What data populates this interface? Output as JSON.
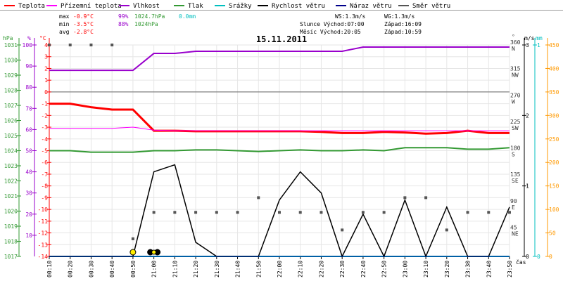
{
  "chart_data": {
    "type": "line",
    "title": "15.11.2011",
    "legend": [
      "Teplota",
      "Přízemní teplota",
      "Vlhkost",
      "Tlak",
      "Srážky",
      "Rychlost větru",
      "Náraz větru",
      "Směr větru"
    ],
    "stats": {
      "max": {
        "label": "max",
        "temp": "-0.9°C",
        "hum": "99%",
        "press": "1024.7hPa",
        "rain": "0.0mm"
      },
      "min": {
        "label": "min",
        "temp": "-3.5°C",
        "hum": "88%",
        "press": "1024hPa"
      },
      "avg": {
        "label": "avg",
        "temp": "-2.8°C"
      }
    },
    "info": {
      "ws": "WS:1.3m/s",
      "wg": "WG:1.3m/s",
      "slunce": "Slunce Východ:07:00",
      "slunce_zapad": "Západ:16:09",
      "mesic": "Měsíc  Východ:20:05",
      "mesic_zapad": "Západ:10:59"
    },
    "axis_units": {
      "hpa": "hPa",
      "pct": "%",
      "degc": "°C",
      "deg": "°",
      "ms": "m/s",
      "mm": "mm",
      "cas": "čas"
    },
    "axes": {
      "hpa_ticks": [
        1031,
        1030,
        1029,
        1028,
        1027,
        1026,
        1025,
        1024,
        1023,
        1022,
        1021,
        1020,
        1019,
        1018,
        1017
      ],
      "pct_ticks": [
        100,
        90,
        80,
        70,
        60,
        50,
        40,
        30,
        20,
        10
      ],
      "temp_ticks": [
        4,
        3,
        2,
        1,
        0,
        -1,
        -2,
        -3,
        -4,
        -5,
        -6,
        -7,
        -8,
        -9,
        -10,
        -11,
        -12,
        -13,
        -14
      ],
      "dir_ticks": [
        {
          "deg": "360",
          "name": "N",
          "v": 360
        },
        {
          "deg": "315",
          "name": "NW",
          "v": 315
        },
        {
          "deg": "270",
          "name": "W",
          "v": 270
        },
        {
          "deg": "225",
          "name": "SW",
          "v": 225
        },
        {
          "deg": "180",
          "name": "S",
          "v": 180
        },
        {
          "deg": "135",
          "name": "SE",
          "v": 135
        },
        {
          "deg": "90",
          "name": "E",
          "v": 90
        },
        {
          "deg": "45",
          "name": "NE",
          "v": 45
        }
      ],
      "ms_ticks": [
        {
          "label": "3",
          "v": 3
        },
        {
          "label": "2",
          "v": 2
        },
        {
          "label": "1",
          "v": 1
        },
        {
          "label": "0",
          "v": 0
        }
      ],
      "mm_ticks": [
        {
          "label": "1",
          "v": 1
        },
        {
          "label": "0",
          "v": 0
        }
      ],
      "rain_ticks": [
        450,
        400,
        350,
        300,
        250,
        200,
        150,
        100,
        50,
        0
      ]
    },
    "x": [
      "00:10",
      "00:20",
      "00:30",
      "00:40",
      "00:50",
      "21:00",
      "21:10",
      "21:20",
      "21:30",
      "21:40",
      "21:50",
      "22:00",
      "22:10",
      "22:20",
      "22:30",
      "22:40",
      "22:50",
      "23:00",
      "23:10",
      "23:20",
      "23:30",
      "23:40",
      "23:50"
    ],
    "x_labels": [
      "00:10",
      "00:20",
      "00:30",
      "00:40",
      "00:50",
      "21:00",
      "21:10",
      "21:20",
      "21:30",
      "21:40",
      "21:50",
      "22:00",
      "22:10",
      "22:20",
      "22:30",
      "22:40",
      "22:50",
      "23:00",
      "23:10",
      "23:20",
      "23:30",
      "23:40",
      "23:50"
    ],
    "series": [
      {
        "name": "Teplota",
        "color": "#ff0000",
        "axis": "temp",
        "values": [
          -1.0,
          -1.0,
          -1.3,
          -1.5,
          -1.5,
          -3.3,
          -3.3,
          -3.35,
          -3.35,
          -3.35,
          -3.35,
          -3.35,
          -3.35,
          -3.4,
          -3.5,
          -3.5,
          -3.4,
          -3.45,
          -3.55,
          -3.5,
          -3.3,
          -3.5,
          -3.5
        ]
      },
      {
        "name": "Přízemní teplota",
        "color": "#ff00ff",
        "axis": "temp",
        "values": [
          -3.1,
          -3.1,
          -3.1,
          -3.1,
          -3.0,
          -3.25,
          -3.3,
          -3.3,
          -3.3,
          -3.3,
          -3.3,
          -3.3,
          -3.3,
          -3.3,
          -3.3,
          -3.3,
          -3.3,
          -3.3,
          -3.3,
          -3.3,
          -3.3,
          -3.3,
          -3.3
        ]
      },
      {
        "name": "Vlhkost",
        "color": "#9900cc",
        "axis": "pct",
        "values": [
          88,
          88,
          88,
          88,
          88,
          96,
          96,
          97,
          97,
          97,
          97,
          97,
          97,
          97,
          97,
          99,
          99,
          99,
          99,
          99,
          99,
          99,
          99
        ]
      },
      {
        "name": "Tlak",
        "color": "#339933",
        "axis": "hpa",
        "values": [
          1024.0,
          1024.0,
          1023.9,
          1023.9,
          1023.9,
          1024.0,
          1024.0,
          1024.05,
          1024.05,
          1024.0,
          1023.95,
          1024.0,
          1024.05,
          1024.0,
          1024.0,
          1024.05,
          1024.0,
          1024.2,
          1024.2,
          1024.2,
          1024.1,
          1024.1,
          1024.2
        ]
      },
      {
        "name": "Srážky",
        "color": "#00bfbf",
        "axis": "rain",
        "values": [
          0,
          0,
          0,
          0,
          0,
          0,
          0,
          0,
          0,
          0,
          0,
          0,
          0,
          0,
          0,
          0,
          0,
          0,
          0,
          0,
          0,
          0,
          0
        ]
      },
      {
        "name": "Rychlost větru",
        "color": "#000000",
        "axis": "ms",
        "values": [
          0,
          0,
          0,
          0,
          0,
          1.2,
          1.3,
          0.2,
          0,
          0,
          0,
          0.8,
          1.2,
          0.9,
          0,
          0.6,
          0,
          0.8,
          0,
          0.7,
          0,
          0,
          0.7
        ]
      },
      {
        "name": "Náraz větru",
        "color": "#00008b",
        "axis": "ms",
        "values": [
          0,
          0,
          0,
          0,
          0,
          0,
          0,
          0,
          0,
          0,
          0,
          0,
          0,
          0,
          0,
          0,
          0,
          0,
          0,
          0,
          0,
          0,
          0
        ]
      },
      {
        "name": "Směr větru",
        "color": "#555555",
        "axis": "dir",
        "values": [
          360,
          360,
          360,
          360,
          30,
          75,
          75,
          75,
          75,
          75,
          100,
          75,
          75,
          75,
          45,
          75,
          75,
          100,
          100,
          45,
          75,
          75,
          75
        ]
      }
    ],
    "ylim": {
      "temp": [
        -14,
        4
      ],
      "pct": [
        0,
        100
      ],
      "hpa": [
        1017,
        1031
      ],
      "ms": [
        0,
        3
      ],
      "dir": [
        0,
        360
      ],
      "rain": [
        0,
        450
      ]
    }
  }
}
